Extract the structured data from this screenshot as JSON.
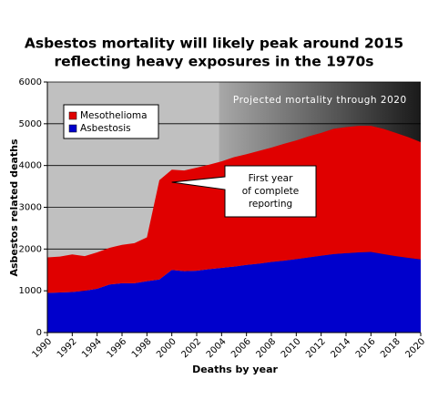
{
  "chart_data": {
    "type": "stacked-area",
    "title": [
      "Asbestos mortality will likely peak around 2015",
      "reflecting heavy exposures in the 1970s"
    ],
    "x_label": "Deaths by year",
    "y_label": "Asbestos related deaths",
    "x": [
      1990,
      1991,
      1992,
      1993,
      1994,
      1995,
      1996,
      1997,
      1998,
      1999,
      2000,
      2001,
      2002,
      2003,
      2004,
      2005,
      2006,
      2007,
      2008,
      2009,
      2010,
      2011,
      2012,
      2013,
      2014,
      2015,
      2016,
      2017,
      2018,
      2019,
      2020
    ],
    "series": [
      {
        "name": "Asbestosis",
        "color": "#0000cc",
        "values": [
          950,
          960,
          970,
          1000,
          1050,
          1150,
          1180,
          1180,
          1230,
          1270,
          1500,
          1470,
          1480,
          1520,
          1550,
          1580,
          1620,
          1650,
          1690,
          1720,
          1760,
          1800,
          1840,
          1880,
          1900,
          1920,
          1930,
          1880,
          1830,
          1790,
          1750
        ]
      },
      {
        "name": "Mesothelioma",
        "color": "#e00000",
        "values": [
          850,
          860,
          900,
          830,
          870,
          880,
          920,
          960,
          1050,
          2380,
          2400,
          2410,
          2470,
          2500,
          2550,
          2620,
          2650,
          2700,
          2740,
          2800,
          2840,
          2900,
          2940,
          3000,
          3020,
          3030,
          3020,
          3000,
          2950,
          2890,
          2810
        ]
      }
    ],
    "xlim": [
      1990,
      2020
    ],
    "xticks": [
      1990,
      1992,
      1994,
      1996,
      1998,
      2000,
      2002,
      2004,
      2006,
      2008,
      2010,
      2012,
      2014,
      2016,
      2018,
      2020
    ],
    "ylim": [
      0,
      6000
    ],
    "yticks": [
      0,
      1000,
      2000,
      3000,
      4000,
      5000,
      6000
    ],
    "grid": true,
    "projection": {
      "start": 2003.8,
      "label": "Projected mortality through 2020"
    },
    "annotation": [
      "First year",
      "of complete",
      "reporting"
    ]
  }
}
